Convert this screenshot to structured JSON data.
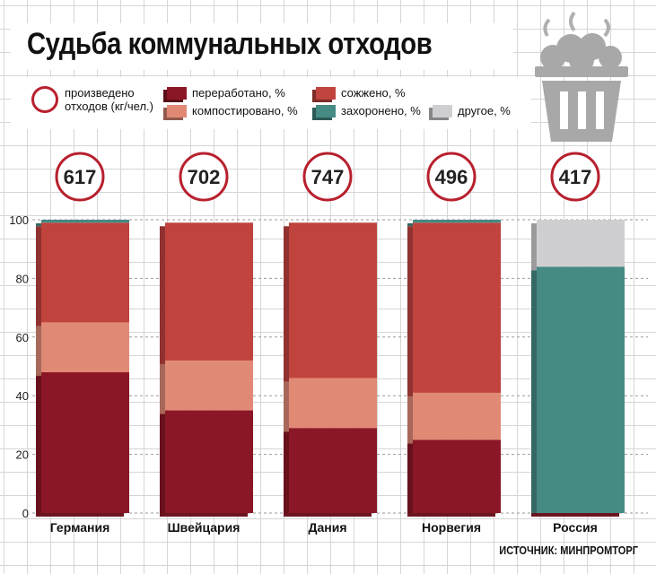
{
  "title": "Судьба коммунальных отходов",
  "legend": {
    "produced": "произведено отходов (кг/чел.)",
    "produced_line1": "произведено",
    "produced_line2": "отходов (кг/чел.)",
    "recycled": "переработано, %",
    "composted": "компостировано, %",
    "incinerated": "сожжено, %",
    "landfilled": "захоронено, %",
    "other": "другое, %"
  },
  "source": "ИСТОЧНИК: МИНПРОМТОРГ",
  "colors": {
    "recycled": "#8b1726",
    "composted": "#e08a76",
    "incinerated": "#c0433e",
    "landfilled": "#468a84",
    "other": "#cfcfd1",
    "circle": "#b8202e",
    "grid": "#d6d6d6"
  },
  "chart_data": {
    "type": "bar",
    "stacked": true,
    "categories": [
      "Германия",
      "Швейцария",
      "Дания",
      "Норвегия",
      "Россия"
    ],
    "produced_kg_per_person": [
      617,
      702,
      747,
      496,
      417
    ],
    "series": [
      {
        "name": "переработано, %",
        "key": "recycled",
        "values": [
          48,
          35,
          29,
          25,
          0
        ]
      },
      {
        "name": "компостировано, %",
        "key": "composted",
        "values": [
          17,
          17,
          17,
          16,
          0
        ]
      },
      {
        "name": "сожжено, %",
        "key": "incinerated",
        "values": [
          34,
          47,
          53,
          58,
          0
        ]
      },
      {
        "name": "захоронено, %",
        "key": "landfilled",
        "values": [
          1,
          0,
          0,
          1,
          84
        ]
      },
      {
        "name": "другое, %",
        "key": "other",
        "values": [
          0,
          0,
          0,
          0,
          16
        ]
      }
    ],
    "ylim": [
      0,
      100
    ],
    "yticks": [
      0,
      20,
      40,
      60,
      80,
      100
    ],
    "legend_position": "top",
    "grid": true
  }
}
